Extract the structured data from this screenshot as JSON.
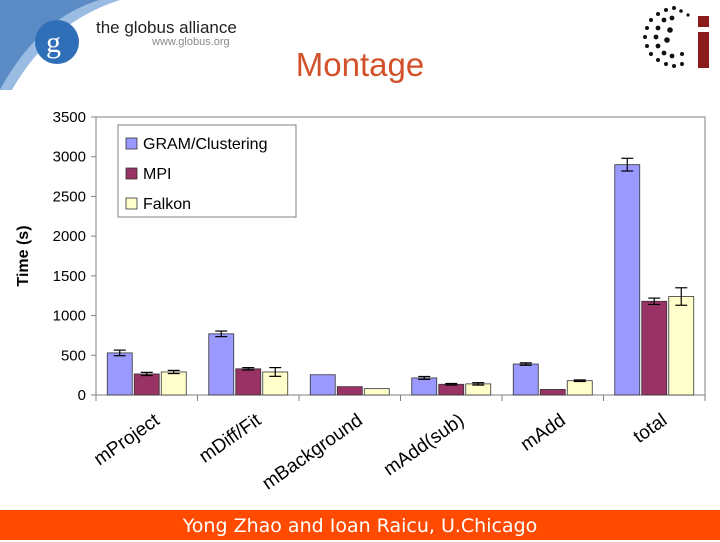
{
  "header": {
    "brand_text": "the globus alliance",
    "brand_url": "www.globus.org",
    "title": "Montage"
  },
  "footer": {
    "text": "Yong Zhao and Ioan Raicu, U.Chicago"
  },
  "colors": {
    "title": "#d2502a",
    "footer_bg": "#ff4a00",
    "gram": "#9999ff",
    "mpi": "#993366",
    "falkon": "#ffffcc"
  },
  "chart_data": {
    "type": "bar",
    "ylabel": "Time (s)",
    "xlabel": "",
    "ylim": [
      0,
      3500
    ],
    "yticks": [
      "0",
      "500",
      "1000",
      "1500",
      "2000",
      "2500",
      "3000",
      "3500"
    ],
    "categories": [
      "mProject",
      "mDiff/Fit",
      "mBackground",
      "mAdd(sub)",
      "mAdd",
      "total"
    ],
    "series": [
      {
        "name": "GRAM/Clustering",
        "values": [
          530,
          770,
          255,
          215,
          390,
          2900
        ],
        "errors": [
          35,
          35,
          0,
          18,
          15,
          80
        ],
        "color": "#9999ff"
      },
      {
        "name": "MPI",
        "values": [
          265,
          330,
          105,
          135,
          70,
          1180
        ],
        "errors": [
          20,
          15,
          0,
          10,
          0,
          40
        ],
        "color": "#993366"
      },
      {
        "name": "Falkon",
        "values": [
          290,
          290,
          80,
          140,
          180,
          1240
        ],
        "errors": [
          20,
          55,
          0,
          15,
          10,
          110
        ],
        "color": "#ffffcc"
      }
    ],
    "legend_position": "top-left",
    "grid": false
  }
}
